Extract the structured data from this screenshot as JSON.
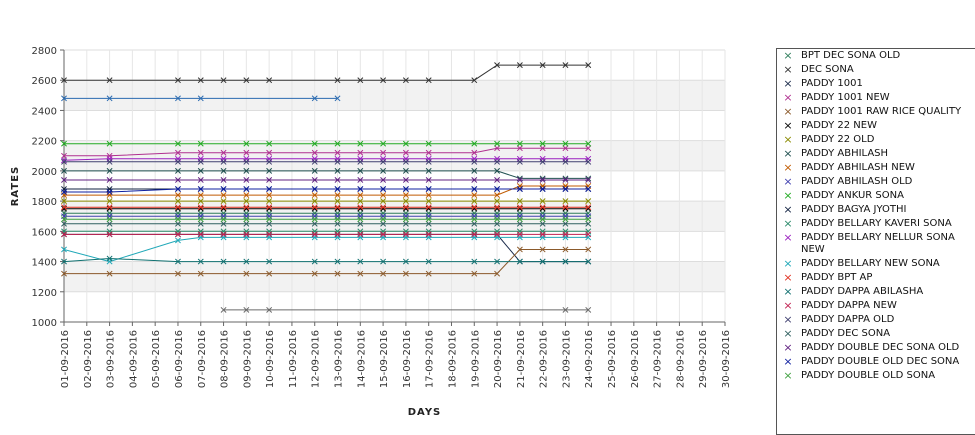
{
  "chart_data": {
    "type": "line",
    "xlabel": "DAYS",
    "ylabel": "RATES",
    "ylim": [
      1000,
      2800
    ],
    "yticks": [
      1000,
      1200,
      1400,
      1600,
      1800,
      2000,
      2200,
      2400,
      2600,
      2800
    ],
    "grid": "horizontal bands",
    "legend_position": "right",
    "categories": [
      "01-09-2016",
      "02-09-2016",
      "03-09-2016",
      "04-09-2016",
      "05-09-2016",
      "06-09-2016",
      "07-09-2016",
      "08-09-2016",
      "09-09-2016",
      "10-09-2016",
      "11-09-2016",
      "12-09-2016",
      "13-09-2016",
      "14-09-2016",
      "15-09-2016",
      "16-09-2016",
      "17-09-2016",
      "18-09-2016",
      "19-09-2016",
      "20-09-2016",
      "21-09-2016",
      "22-09-2016",
      "23-09-2016",
      "24-09-2016",
      "25-09-2016",
      "26-09-2016",
      "27-09-2016",
      "28-09-2016",
      "29-09-2016",
      "30-09-2016"
    ],
    "series": [
      {
        "name": "BPT DEC SONA OLD",
        "color": "#2e7d5b",
        "values": [
          1720,
          null,
          1720,
          null,
          null,
          1720,
          1720,
          1720,
          1720,
          1720,
          null,
          1720,
          1720,
          1720,
          1720,
          1720,
          1720,
          null,
          1720,
          1720,
          1720,
          1720,
          1720,
          1720,
          null,
          null,
          null,
          null,
          null,
          null
        ]
      },
      {
        "name": "DEC SONA",
        "color": "#333333",
        "values": [
          2600,
          null,
          2600,
          null,
          null,
          2600,
          2600,
          2600,
          2600,
          2600,
          null,
          null,
          2600,
          2600,
          2600,
          2600,
          2600,
          null,
          2600,
          2700,
          2700,
          2700,
          2700,
          2700,
          null,
          null,
          null,
          null,
          null,
          null
        ]
      },
      {
        "name": "PADDY 1001",
        "color": "#1a2a4a",
        "values": [
          1580,
          null,
          1580,
          null,
          null,
          1580,
          1580,
          1580,
          1580,
          1580,
          null,
          1580,
          1580,
          1580,
          1580,
          1580,
          1580,
          null,
          1580,
          1580,
          1400,
          1400,
          1400,
          1400,
          null,
          null,
          null,
          null,
          null,
          null
        ]
      },
      {
        "name": "PADDY 1001 NEW",
        "color": "#b03090",
        "values": [
          2100,
          null,
          2100,
          null,
          null,
          2120,
          2120,
          2120,
          2120,
          2120,
          null,
          2120,
          2120,
          2120,
          2120,
          2120,
          2120,
          null,
          2120,
          2150,
          2150,
          2150,
          2150,
          2150,
          null,
          null,
          null,
          null,
          null,
          null
        ]
      },
      {
        "name": "PADDY 1001 RAW RICE QUALITY",
        "color": "#8b5a2b",
        "values": [
          1320,
          null,
          1320,
          null,
          null,
          1320,
          1320,
          null,
          1320,
          1320,
          null,
          1320,
          1320,
          1320,
          1320,
          1320,
          1320,
          null,
          1320,
          1320,
          1480,
          1480,
          1480,
          1480,
          null,
          null,
          null,
          null,
          null,
          null
        ]
      },
      {
        "name": "PADDY 22 NEW",
        "color": "#000000",
        "values": [
          1750,
          null,
          1750,
          null,
          null,
          1750,
          1750,
          1750,
          1750,
          1750,
          null,
          1750,
          1750,
          1750,
          1750,
          1750,
          1750,
          null,
          1750,
          1750,
          1750,
          1750,
          1750,
          1750,
          null,
          null,
          null,
          null,
          null,
          null
        ]
      },
      {
        "name": "PADDY 22 OLD",
        "color": "#8a8a00",
        "values": [
          1800,
          null,
          1800,
          null,
          null,
          1800,
          1800,
          1800,
          1800,
          1800,
          null,
          1800,
          1800,
          1800,
          1800,
          1800,
          1800,
          null,
          1800,
          1800,
          1800,
          1800,
          1800,
          1800,
          null,
          null,
          null,
          null,
          null,
          null
        ]
      },
      {
        "name": "PADDY ABHILASH",
        "color": "#205050",
        "values": [
          2000,
          null,
          2000,
          null,
          null,
          2000,
          2000,
          2000,
          2000,
          2000,
          null,
          2000,
          2000,
          2000,
          2000,
          2000,
          2000,
          null,
          2000,
          2000,
          1950,
          1950,
          1950,
          1950,
          null,
          null,
          null,
          null,
          null,
          null
        ]
      },
      {
        "name": "PADDY ABHILASH NEW",
        "color": "#c05a00",
        "values": [
          1840,
          null,
          1840,
          null,
          null,
          1840,
          1840,
          1840,
          1840,
          1840,
          null,
          1840,
          1840,
          1840,
          1840,
          1840,
          1840,
          null,
          1840,
          1840,
          1900,
          1900,
          1900,
          1900,
          null,
          null,
          null,
          null,
          null,
          null
        ]
      },
      {
        "name": "PADDY ABHILASH OLD",
        "color": "#4040b0",
        "values": [
          1700,
          null,
          1700,
          null,
          null,
          1700,
          1700,
          1700,
          1700,
          1700,
          null,
          1700,
          1700,
          1700,
          1700,
          1700,
          1700,
          null,
          1700,
          1700,
          1700,
          1700,
          1700,
          1700,
          null,
          null,
          null,
          null,
          null,
          null
        ]
      },
      {
        "name": "PADDY ANKUR SONA",
        "color": "#22aa22",
        "values": [
          2180,
          null,
          2180,
          null,
          null,
          2180,
          2180,
          null,
          2180,
          2180,
          null,
          2180,
          2180,
          2180,
          2180,
          2180,
          2180,
          null,
          2180,
          2180,
          2180,
          2180,
          2180,
          2180,
          null,
          null,
          null,
          null,
          null,
          null
        ]
      },
      {
        "name": "PADDY BAGYA JYOTHI",
        "color": "#102040",
        "values": [
          1880,
          null,
          1880,
          null,
          null,
          1880,
          1880,
          1880,
          1880,
          1880,
          null,
          1880,
          1880,
          1880,
          1880,
          1880,
          1880,
          null,
          1880,
          1880,
          1880,
          1880,
          1880,
          1880,
          null,
          null,
          null,
          null,
          null,
          null
        ]
      },
      {
        "name": "PADDY BELLARY KAVERI SONA",
        "color": "#2a8a6a",
        "values": [
          1600,
          null,
          1600,
          null,
          null,
          1600,
          1600,
          1600,
          1600,
          1600,
          null,
          1600,
          1600,
          1600,
          1600,
          1600,
          1600,
          null,
          1600,
          1600,
          1600,
          1600,
          1600,
          1600,
          null,
          null,
          null,
          null,
          null,
          null
        ]
      },
      {
        "name": "PADDY BELLARY NELLUR SONA NEW",
        "color": "#9a20c0",
        "values": [
          2070,
          null,
          2080,
          null,
          null,
          2080,
          2080,
          2080,
          2080,
          2080,
          null,
          2080,
          2080,
          2080,
          2080,
          2080,
          2080,
          null,
          2080,
          2080,
          2080,
          2080,
          2080,
          2080,
          null,
          null,
          null,
          null,
          null,
          null
        ]
      },
      {
        "name": "PADDY BELLARY NEW SONA",
        "color": "#20a8b8",
        "values": [
          1480,
          null,
          1400,
          null,
          null,
          1540,
          1560,
          1560,
          1560,
          1560,
          null,
          1560,
          1560,
          1560,
          1560,
          1560,
          1560,
          null,
          1560,
          1560,
          1560,
          1560,
          1560,
          1560,
          null,
          null,
          null,
          null,
          null,
          null
        ]
      },
      {
        "name": "PADDY BPT AP",
        "color": "#e03020",
        "values": [
          1760,
          null,
          1760,
          null,
          null,
          1760,
          1760,
          1760,
          1760,
          1760,
          null,
          1760,
          1760,
          1760,
          1760,
          1760,
          1760,
          null,
          1760,
          1760,
          1760,
          1760,
          1760,
          1760,
          null,
          null,
          null,
          null,
          null,
          null
        ]
      },
      {
        "name": "PADDY DAPPA ABILASHA",
        "color": "#107070",
        "values": [
          1400,
          null,
          1420,
          null,
          null,
          1400,
          1400,
          1400,
          1400,
          1400,
          null,
          1400,
          1400,
          1400,
          1400,
          1400,
          1400,
          null,
          1400,
          1400,
          1400,
          1400,
          1400,
          1400,
          null,
          null,
          null,
          null,
          null,
          null
        ]
      },
      {
        "name": "PADDY DAPPA NEW",
        "color": "#c02050",
        "values": [
          1580,
          null,
          1580,
          null,
          null,
          1580,
          1580,
          1580,
          1580,
          1580,
          null,
          1580,
          1580,
          1580,
          1580,
          1580,
          1580,
          null,
          1580,
          1580,
          1580,
          1580,
          1580,
          1580,
          null,
          null,
          null,
          null,
          null,
          null
        ]
      },
      {
        "name": "PADDY DAPPA OLD",
        "color": "#404070",
        "values": [
          2060,
          null,
          2060,
          null,
          null,
          2060,
          2060,
          2060,
          2060,
          2060,
          null,
          2060,
          2060,
          2060,
          2060,
          2060,
          2060,
          null,
          2060,
          2060,
          2060,
          2060,
          2060,
          2060,
          null,
          null,
          null,
          null,
          null,
          null
        ]
      },
      {
        "name": "PADDY DEC SONA",
        "color": "#306060",
        "values": [
          1650,
          null,
          1650,
          null,
          null,
          1650,
          1650,
          1650,
          1650,
          1650,
          null,
          1650,
          1650,
          1650,
          1650,
          1650,
          1650,
          null,
          1650,
          1650,
          1650,
          1650,
          1650,
          1650,
          null,
          null,
          null,
          null,
          null,
          null
        ]
      },
      {
        "name": "PADDY DOUBLE DEC SONA OLD",
        "color": "#602080",
        "values": [
          1940,
          null,
          1940,
          null,
          null,
          1940,
          1940,
          1940,
          1940,
          1940,
          null,
          1940,
          1940,
          1940,
          1940,
          1940,
          1940,
          null,
          1940,
          1940,
          1940,
          1940,
          1940,
          1940,
          null,
          null,
          null,
          null,
          null,
          null
        ]
      },
      {
        "name": "PADDY DOUBLE OLD DEC SONA",
        "color": "#1020a0",
        "values": [
          1860,
          null,
          1860,
          null,
          null,
          1880,
          1880,
          1880,
          1880,
          1880,
          null,
          1880,
          1880,
          1880,
          1880,
          1880,
          1880,
          null,
          1880,
          1880,
          1880,
          1880,
          1880,
          1880,
          null,
          null,
          null,
          null,
          null,
          null
        ]
      },
      {
        "name": "PADDY DOUBLE OLD SONA",
        "color": "#40a040",
        "values": [
          1680,
          null,
          1680,
          null,
          null,
          1680,
          1680,
          1680,
          1680,
          1680,
          null,
          1680,
          1680,
          1680,
          1680,
          1680,
          1680,
          null,
          1680,
          1680,
          1680,
          1680,
          1680,
          1680,
          null,
          null,
          null,
          null,
          null,
          null
        ]
      },
      {
        "name": "",
        "color": "#2a6ab0",
        "values": [
          2480,
          null,
          2480,
          null,
          null,
          2480,
          2480,
          null,
          null,
          null,
          null,
          2480,
          2480,
          null,
          null,
          null,
          null,
          null,
          null,
          null,
          null,
          null,
          null,
          null,
          null,
          null,
          null,
          null,
          null,
          null
        ]
      },
      {
        "name": "",
        "color": "#6a6a6a",
        "values": [
          null,
          null,
          null,
          null,
          null,
          null,
          null,
          1080,
          1080,
          1080,
          null,
          null,
          null,
          null,
          null,
          null,
          null,
          null,
          null,
          null,
          null,
          null,
          1080,
          1080,
          null,
          null,
          null,
          null,
          null,
          null
        ]
      }
    ]
  }
}
